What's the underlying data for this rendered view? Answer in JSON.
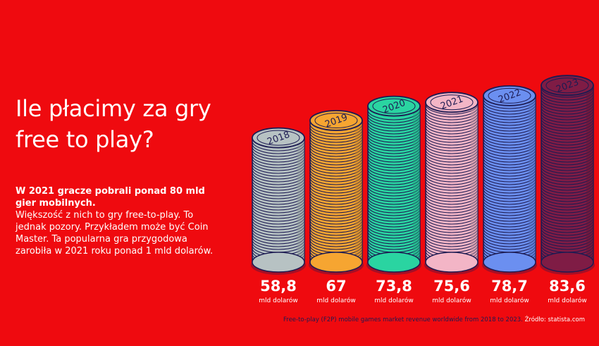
{
  "headline": "Ile płacimy za gry free to play?",
  "intro": {
    "lead": "W 2021 gracze pobrali ponad 80 mld gier mobilnych.",
    "body": "Większość z nich to gry free-to-play. To jednak pozory. Przykładem może być Coin Master. Ta popularna gra przygodowa zarobiła w 2021 roku ponad 1 mld dolarów."
  },
  "colors": {
    "background": "#ef0a0f",
    "text": "#ffffff",
    "coin_rim": "#1d1b52"
  },
  "chart_data": {
    "type": "bar",
    "style": "coin-stacks",
    "categories": [
      "2018",
      "2019",
      "2020",
      "2021",
      "2022",
      "2023"
    ],
    "values": [
      58.8,
      67,
      73.8,
      75.6,
      78.7,
      83.6
    ],
    "value_labels": [
      "58,8",
      "67",
      "73,8",
      "75,6",
      "78,7",
      "83,6"
    ],
    "unit_label": "mld dolarów",
    "bar_colors": [
      "#b7c2c3",
      "#f6a531",
      "#2ad4a1",
      "#f3b5c6",
      "#6b8ff0",
      "#7f1c45"
    ]
  },
  "footnote": {
    "text": "Free-to-play (F2P) mobile games market revenue worldwide from 2018 to 2023.",
    "source": "Źródło: statista.com"
  }
}
